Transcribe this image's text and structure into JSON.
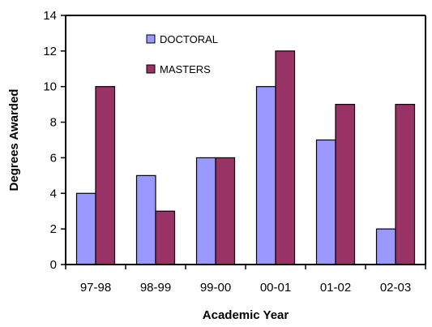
{
  "chart_data": {
    "type": "bar",
    "title": "",
    "xlabel": "Academic Year",
    "ylabel": "Degrees Awarded",
    "categories": [
      "97-98",
      "98-99",
      "99-00",
      "00-01",
      "01-02",
      "02-03"
    ],
    "series": [
      {
        "name": "DOCTORAL",
        "values": [
          4,
          5,
          6,
          10,
          7,
          2
        ],
        "color": "#9999ff"
      },
      {
        "name": "MASTERS",
        "values": [
          10,
          3,
          6,
          12,
          9,
          9
        ],
        "color": "#993366"
      }
    ],
    "ylim": [
      0,
      14
    ],
    "yticks": [
      0,
      2,
      4,
      6,
      8,
      10,
      12,
      14
    ],
    "grid": false,
    "legend_position": "top-left inside plot"
  }
}
